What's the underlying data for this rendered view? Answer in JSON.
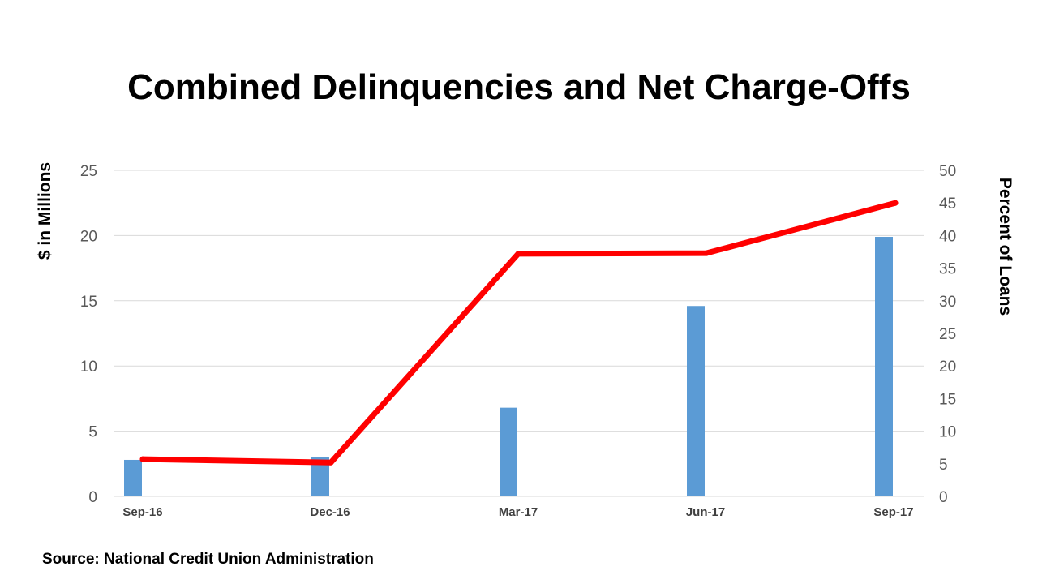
{
  "chart_data": {
    "type": "bar+line",
    "title": "Combined Delinquencies and Net Charge-Offs",
    "categories": [
      "Sep-16",
      "Dec-16",
      "Mar-17",
      "Jun-17",
      "Sep-17"
    ],
    "series": [
      {
        "name": "$ in Millions",
        "type": "bar",
        "axis": "left",
        "color": "#5b9bd5",
        "values": [
          2.8,
          3.0,
          6.8,
          14.6,
          19.9
        ]
      },
      {
        "name": "Percent of Loans",
        "type": "line",
        "axis": "right",
        "color": "#ff0000",
        "values": [
          5.7,
          5.2,
          37.2,
          37.3,
          45.0
        ]
      }
    ],
    "ylabel_left": "$ in Millions",
    "ylabel_right": "Percent of Loans",
    "ylim_left": [
      0,
      25
    ],
    "ylim_right": [
      0,
      50
    ],
    "yticks_left": [
      0,
      5,
      10,
      15,
      20,
      25
    ],
    "yticks_right": [
      0,
      5,
      10,
      15,
      20,
      25,
      30,
      35,
      40,
      45,
      50
    ],
    "grid": true
  },
  "source": "Source: National Credit Union Administration"
}
